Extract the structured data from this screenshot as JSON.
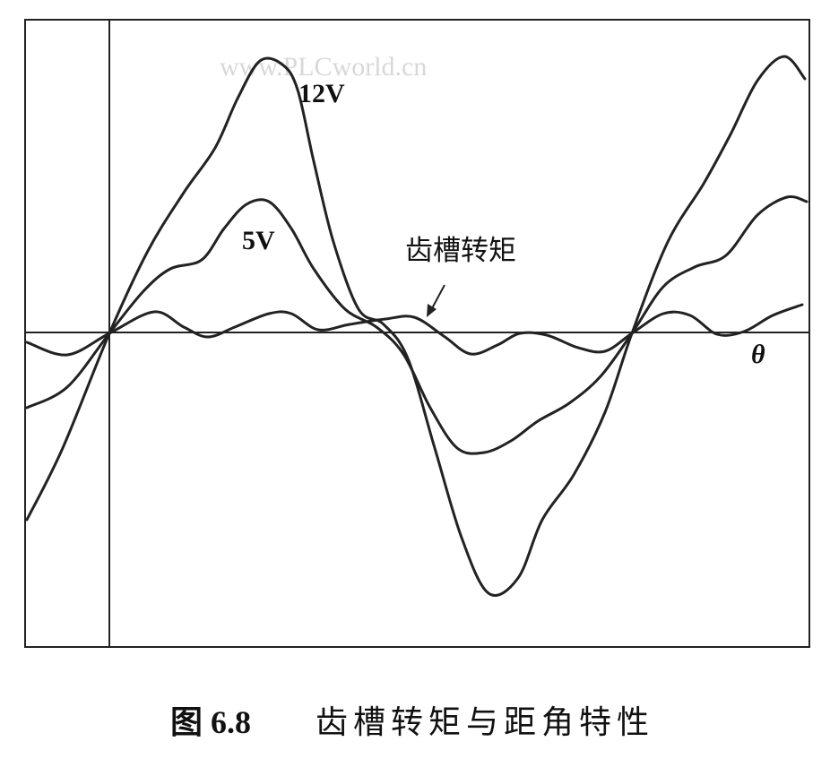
{
  "watermark": "www.PLCworld.cn",
  "labels": {
    "v12": "12V",
    "v5": "5V",
    "cogging": "齿槽转矩",
    "theta": "θ"
  },
  "caption": {
    "number": "图 6.8",
    "text": "齿槽转矩与距角特性"
  }
}
